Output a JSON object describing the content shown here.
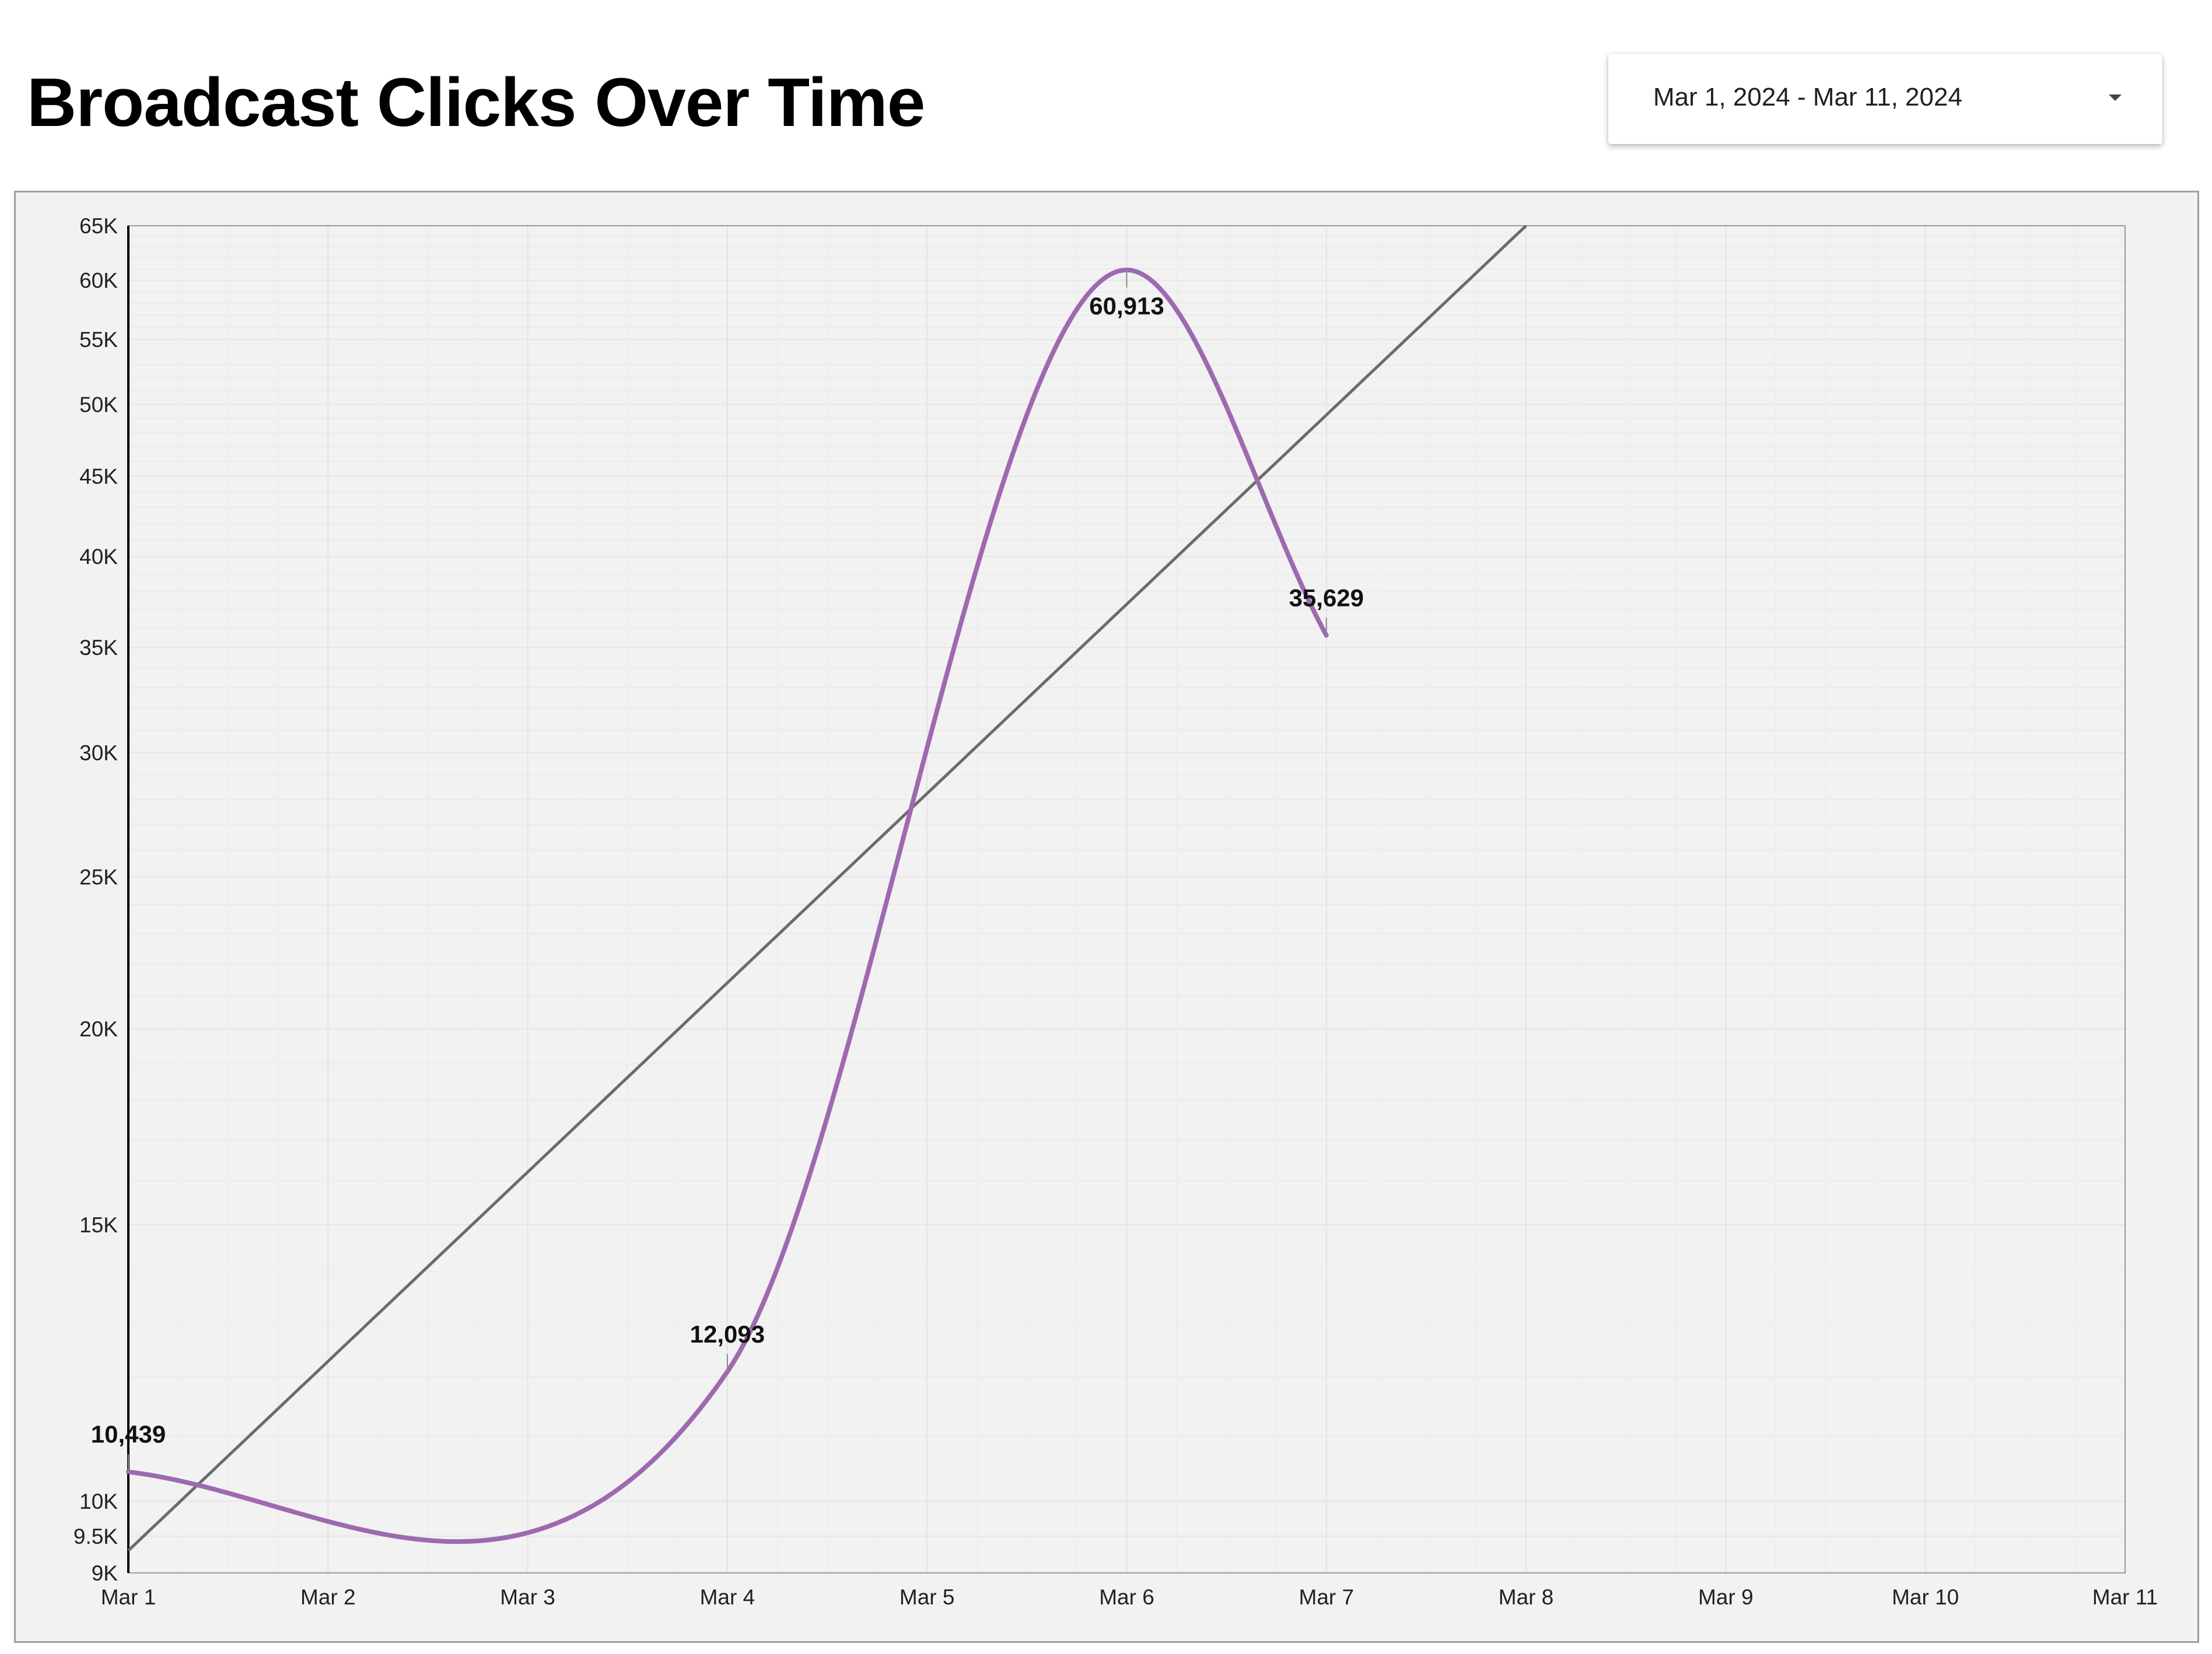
{
  "header": {
    "title": "Broadcast Clicks Over Time"
  },
  "date_range": {
    "label": "Mar 1, 2024 - Mar 11, 2024"
  },
  "colors": {
    "series": "#9e69b0",
    "trendline": "#6b6b6b",
    "plot_background": "#f2f2f2",
    "grid": "#e6e6e6"
  },
  "chart_data": {
    "type": "line",
    "title": "Broadcast Clicks Over Time",
    "xlabel": "",
    "ylabel": "",
    "y_scale": "log",
    "ylim": [
      9000,
      65000
    ],
    "categories": [
      "Mar 1",
      "Mar 2",
      "Mar 3",
      "Mar 4",
      "Mar 5",
      "Mar 6",
      "Mar 7",
      "Mar 8",
      "Mar 9",
      "Mar 10",
      "Mar 11"
    ],
    "y_ticks": [
      9000,
      9500,
      10000,
      15000,
      20000,
      25000,
      30000,
      35000,
      40000,
      45000,
      50000,
      55000,
      60000,
      65000
    ],
    "y_tick_labels": [
      "9K",
      "9.5K",
      "10K",
      "15K",
      "20K",
      "25K",
      "30K",
      "35K",
      "40K",
      "45K",
      "50K",
      "55K",
      "60K",
      "65K"
    ],
    "series": [
      {
        "x": [
          "Mar 1",
          "Mar 4",
          "Mar 6",
          "Mar 7"
        ],
        "values": [
          10439,
          12093,
          60913,
          35629
        ],
        "data_labels": [
          "10,439",
          "12,093",
          "60,913",
          "35,629"
        ],
        "smooth": true
      }
    ],
    "trendline": {
      "type": "exponential",
      "x": [
        "Mar 1",
        "Mar 8"
      ],
      "values": [
        9300,
        65000
      ]
    },
    "grid": true,
    "legend": "none"
  }
}
